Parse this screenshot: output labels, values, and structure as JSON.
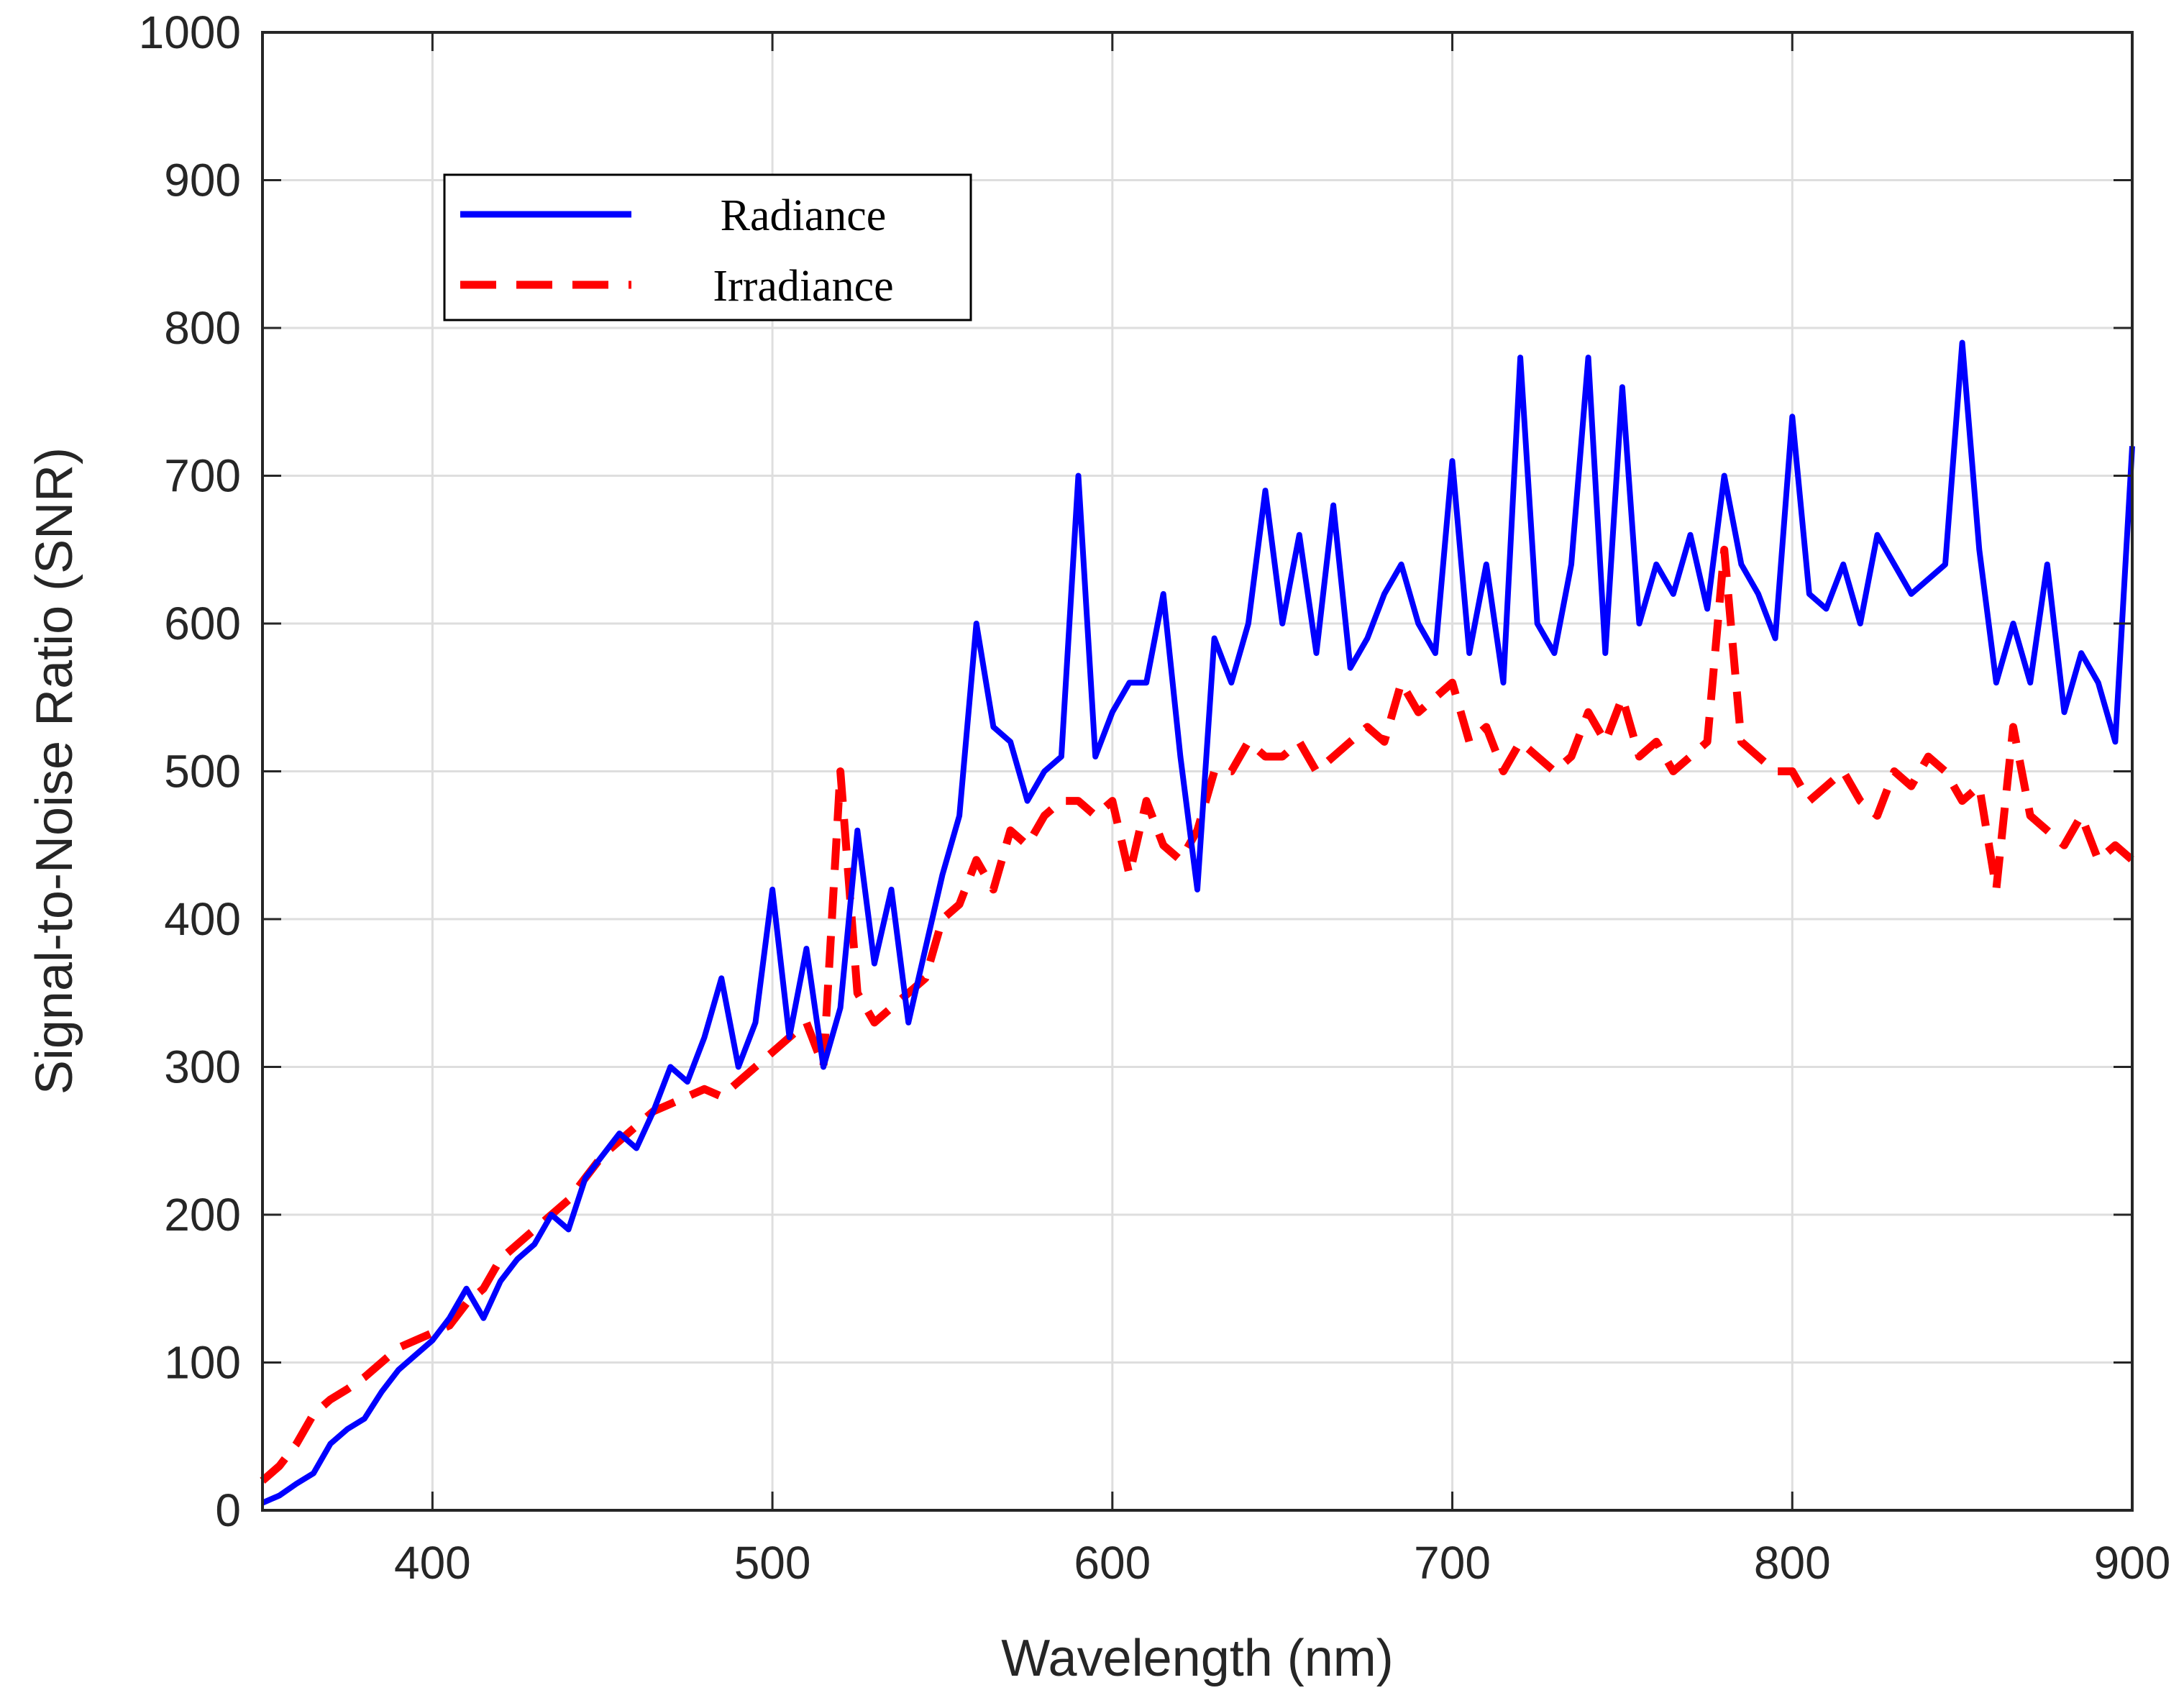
{
  "chart_data": {
    "type": "line",
    "title": "",
    "xlabel": "Wavelength (nm)",
    "ylabel": "Signal-to-Noise Ratio (SNR)",
    "xlim": [
      350,
      900
    ],
    "ylim": [
      0,
      1000
    ],
    "xticks": [
      400,
      500,
      600,
      700,
      800,
      900
    ],
    "yticks": [
      0,
      100,
      200,
      300,
      400,
      500,
      600,
      700,
      800,
      900,
      1000
    ],
    "grid": true,
    "legend_position": "top-left",
    "series": [
      {
        "name": "Radiance",
        "color": "#0000ff",
        "style": "solid",
        "x": [
          350,
          355,
          360,
          365,
          370,
          375,
          380,
          385,
          390,
          395,
          400,
          405,
          410,
          415,
          420,
          425,
          430,
          435,
          440,
          445,
          450,
          455,
          460,
          465,
          470,
          475,
          480,
          485,
          490,
          495,
          500,
          505,
          510,
          515,
          520,
          525,
          530,
          535,
          540,
          545,
          550,
          555,
          560,
          565,
          570,
          575,
          580,
          585,
          590,
          595,
          600,
          605,
          610,
          615,
          620,
          625,
          630,
          635,
          640,
          645,
          650,
          655,
          660,
          665,
          670,
          675,
          680,
          685,
          690,
          695,
          700,
          705,
          710,
          715,
          720,
          725,
          730,
          735,
          740,
          745,
          750,
          755,
          760,
          765,
          770,
          775,
          780,
          785,
          790,
          795,
          800,
          805,
          810,
          815,
          820,
          825,
          830,
          835,
          840,
          845,
          850,
          855,
          860,
          865,
          870,
          875,
          880,
          885,
          890,
          895,
          900
        ],
        "y": [
          5,
          10,
          18,
          25,
          45,
          55,
          62,
          80,
          95,
          105,
          115,
          130,
          150,
          130,
          155,
          170,
          180,
          200,
          190,
          225,
          240,
          255,
          245,
          270,
          300,
          290,
          320,
          360,
          300,
          330,
          420,
          320,
          380,
          300,
          340,
          460,
          370,
          420,
          330,
          380,
          430,
          470,
          600,
          530,
          520,
          480,
          500,
          510,
          700,
          510,
          540,
          560,
          560,
          620,
          510,
          420,
          590,
          560,
          600,
          690,
          600,
          660,
          580,
          680,
          570,
          590,
          620,
          640,
          600,
          580,
          710,
          580,
          640,
          560,
          780,
          600,
          580,
          640,
          780,
          580,
          760,
          600,
          640,
          620,
          660,
          610,
          700,
          640,
          620,
          590,
          740,
          620,
          610,
          640,
          600,
          660,
          640,
          620,
          630,
          640,
          790,
          650,
          560,
          600,
          560,
          640,
          540,
          580,
          560,
          520,
          720
        ]
      },
      {
        "name": "Irradiance",
        "color": "#ff0000",
        "style": "dashed",
        "x": [
          350,
          355,
          360,
          365,
          370,
          375,
          380,
          385,
          390,
          395,
          400,
          405,
          410,
          415,
          420,
          425,
          430,
          435,
          440,
          445,
          450,
          455,
          460,
          465,
          470,
          475,
          480,
          485,
          490,
          495,
          500,
          505,
          510,
          515,
          520,
          525,
          530,
          535,
          540,
          545,
          550,
          555,
          560,
          565,
          570,
          575,
          580,
          585,
          590,
          595,
          600,
          605,
          610,
          615,
          620,
          625,
          630,
          635,
          640,
          645,
          650,
          655,
          660,
          665,
          670,
          675,
          680,
          685,
          690,
          695,
          700,
          705,
          710,
          715,
          720,
          725,
          730,
          735,
          740,
          745,
          750,
          755,
          760,
          765,
          770,
          775,
          780,
          785,
          790,
          795,
          800,
          805,
          810,
          815,
          820,
          825,
          830,
          835,
          840,
          845,
          850,
          855,
          860,
          865,
          870,
          875,
          880,
          885,
          890,
          895,
          900
        ],
        "y": [
          20,
          30,
          45,
          65,
          75,
          82,
          90,
          100,
          110,
          115,
          120,
          125,
          140,
          150,
          170,
          180,
          190,
          200,
          210,
          225,
          240,
          250,
          260,
          270,
          275,
          280,
          285,
          280,
          290,
          300,
          310,
          320,
          330,
          300,
          500,
          350,
          330,
          340,
          350,
          360,
          400,
          410,
          440,
          420,
          460,
          450,
          470,
          480,
          480,
          470,
          480,
          430,
          480,
          450,
          440,
          460,
          500,
          500,
          520,
          510,
          510,
          520,
          500,
          510,
          520,
          530,
          520,
          560,
          540,
          550,
          560,
          520,
          530,
          500,
          520,
          510,
          500,
          510,
          540,
          520,
          550,
          510,
          520,
          500,
          510,
          520,
          650,
          520,
          510,
          500,
          500,
          480,
          490,
          500,
          480,
          470,
          500,
          490,
          510,
          500,
          480,
          490,
          420,
          530,
          470,
          460,
          450,
          470,
          440,
          450,
          440
        ]
      }
    ]
  }
}
